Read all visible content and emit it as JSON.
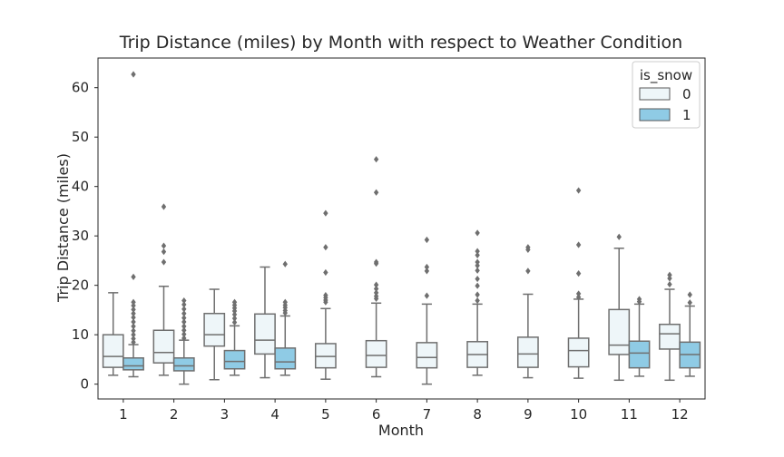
{
  "chart_data": {
    "type": "box",
    "title": "Trip Distance (miles) by Month with respect to Weather Condition",
    "xlabel": "Month",
    "ylabel": "Trip Distance (miles)",
    "ylim": [
      -3,
      66
    ],
    "yticks": [
      0,
      10,
      20,
      30,
      40,
      50,
      60
    ],
    "grid": false,
    "legend": {
      "title": "is_snow",
      "placement": "top-right"
    },
    "categories": [
      "1",
      "2",
      "3",
      "4",
      "5",
      "6",
      "7",
      "8",
      "9",
      "10",
      "11",
      "12"
    ],
    "series": [
      {
        "name": "0",
        "color": "#eef6f9",
        "boxes": [
          {
            "category": "1",
            "whisker_low": 1.8,
            "q1": 3.4,
            "median": 5.6,
            "q3": 10.0,
            "whisker_high": 18.5,
            "outliers": []
          },
          {
            "category": "2",
            "whisker_low": 1.8,
            "q1": 4.3,
            "median": 6.4,
            "q3": 10.9,
            "whisker_high": 19.8,
            "outliers": [
              35.9,
              28.0,
              26.8,
              24.7
            ]
          },
          {
            "category": "3",
            "whisker_low": 0.9,
            "q1": 7.7,
            "median": 10.0,
            "q3": 14.3,
            "whisker_high": 19.2,
            "outliers": []
          },
          {
            "category": "4",
            "whisker_low": 1.3,
            "q1": 6.1,
            "median": 8.9,
            "q3": 14.2,
            "whisker_high": 23.7,
            "outliers": []
          },
          {
            "category": "5",
            "whisker_low": 1.0,
            "q1": 3.3,
            "median": 5.6,
            "q3": 8.2,
            "whisker_high": 15.3,
            "outliers": [
              34.6,
              27.7,
              22.6,
              18.0,
              17.5,
              17.0,
              16.6
            ]
          },
          {
            "category": "6",
            "whisker_low": 1.5,
            "q1": 3.4,
            "median": 5.8,
            "q3": 8.8,
            "whisker_high": 16.4,
            "outliers": [
              45.5,
              38.8,
              24.7,
              24.4,
              20.1,
              19.3,
              18.5,
              17.8,
              17.3
            ]
          },
          {
            "category": "7",
            "whisker_low": 0.0,
            "q1": 3.3,
            "median": 5.4,
            "q3": 8.4,
            "whisker_high": 16.2,
            "outliers": [
              29.2,
              23.7,
              22.9,
              17.9
            ]
          },
          {
            "category": "8",
            "whisker_low": 1.8,
            "q1": 3.4,
            "median": 6.0,
            "q3": 8.6,
            "whisker_high": 16.2,
            "outliers": [
              30.6,
              26.9,
              26.1,
              24.7,
              24.0,
              23.0,
              21.3,
              19.9,
              18.1,
              16.9
            ]
          },
          {
            "category": "9",
            "whisker_low": 1.3,
            "q1": 3.4,
            "median": 6.1,
            "q3": 9.5,
            "whisker_high": 18.2,
            "outliers": [
              27.7,
              27.2,
              22.9
            ]
          },
          {
            "category": "10",
            "whisker_low": 1.2,
            "q1": 3.5,
            "median": 6.8,
            "q3": 9.3,
            "whisker_high": 17.2,
            "outliers": [
              39.2,
              28.2,
              22.4,
              18.3,
              17.6
            ]
          },
          {
            "category": "11",
            "whisker_low": 0.8,
            "q1": 6.0,
            "median": 7.9,
            "q3": 15.1,
            "whisker_high": 27.5,
            "outliers": [
              29.8
            ]
          },
          {
            "category": "12",
            "whisker_low": 0.8,
            "q1": 7.1,
            "median": 10.2,
            "q3": 12.1,
            "whisker_high": 19.2,
            "outliers": [
              22.1,
              21.4,
              20.2
            ]
          }
        ]
      },
      {
        "name": "1",
        "color": "#8fcbe5",
        "boxes": [
          {
            "category": "1",
            "whisker_low": 1.5,
            "q1": 2.9,
            "median": 3.7,
            "q3": 5.3,
            "whisker_high": 8.0,
            "outliers": [
              62.7,
              21.7,
              16.6,
              15.9,
              15.1,
              14.3,
              13.5,
              12.6,
              11.7,
              10.8,
              10.0,
              9.2,
              8.5
            ]
          },
          {
            "category": "2",
            "whisker_low": 0.0,
            "q1": 2.7,
            "median": 3.7,
            "q3": 5.3,
            "whisker_high": 8.9,
            "outliers": [
              16.9,
              16.1,
              15.2,
              14.3,
              13.4,
              12.6,
              11.7,
              10.9,
              10.1,
              9.3
            ]
          },
          {
            "category": "3",
            "whisker_low": 1.8,
            "q1": 3.1,
            "median": 4.6,
            "q3": 6.8,
            "whisker_high": 11.8,
            "outliers": [
              16.6,
              16.0,
              15.4,
              14.8,
              14.1,
              13.3,
              12.5
            ]
          },
          {
            "category": "4",
            "whisker_low": 1.8,
            "q1": 3.1,
            "median": 4.5,
            "q3": 7.3,
            "whisker_high": 13.8,
            "outliers": [
              24.3,
              16.6,
              16.0,
              15.5,
              14.9,
              14.4
            ]
          },
          {
            "category": "11",
            "whisker_low": 1.6,
            "q1": 3.3,
            "median": 6.3,
            "q3": 8.7,
            "whisker_high": 16.2,
            "outliers": [
              17.2,
              16.7
            ]
          },
          {
            "category": "12",
            "whisker_low": 1.6,
            "q1": 3.3,
            "median": 6.0,
            "q3": 8.5,
            "whisker_high": 15.8,
            "outliers": [
              18.1,
              16.5
            ]
          }
        ]
      }
    ]
  }
}
